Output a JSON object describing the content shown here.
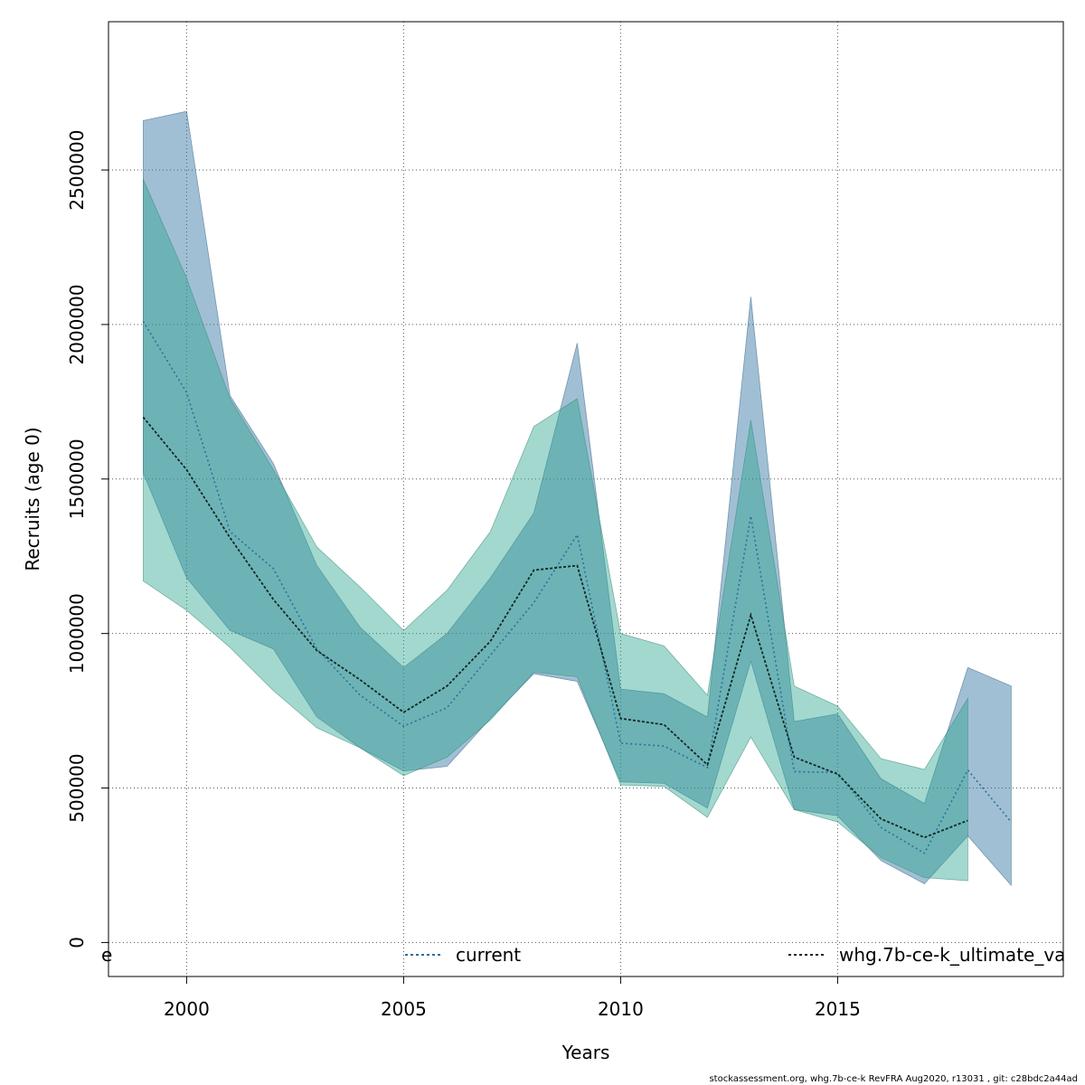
{
  "chart_data": {
    "type": "area",
    "title": "",
    "xlabel": "Years",
    "ylabel": "Recruits (age 0)",
    "xlim": [
      1998.2,
      2020.2
    ],
    "ylim": [
      -110000,
      2980000
    ],
    "x_ticks": [
      2000,
      2005,
      2010,
      2015
    ],
    "y_ticks": [
      0,
      500000,
      1000000,
      1500000,
      2000000,
      2500000
    ],
    "x_tick_labels": [
      "2000",
      "2005",
      "2010",
      "2015"
    ],
    "y_tick_labels": [
      "0",
      "500000",
      "1000000",
      "1500000",
      "2000000",
      "2500000"
    ],
    "grid": true,
    "legend_position": "bottom",
    "series": [
      {
        "name": "current",
        "color": "#2a7098",
        "band_color": "#2f72a0",
        "x": [
          1999,
          2000,
          2001,
          2002,
          2003,
          2004,
          2005,
          2006,
          2007,
          2008,
          2009,
          2010,
          2011,
          2012,
          2013,
          2014,
          2015,
          2016,
          2017,
          2018,
          2019
        ],
        "values": [
          2010000,
          1780000,
          1330000,
          1210000,
          950000,
          800000,
          700000,
          760000,
          930000,
          1100000,
          1320000,
          645000,
          636000,
          566000,
          1380000,
          553000,
          550000,
          372000,
          289000,
          558000,
          390000
        ],
        "upper": [
          2660000,
          2690000,
          1770000,
          1550000,
          1220000,
          1020000,
          890000,
          1000000,
          1180000,
          1390000,
          1940000,
          820000,
          805000,
          730000,
          2090000,
          715000,
          740000,
          530000,
          450000,
          890000,
          830000
        ],
        "lower": [
          1520000,
          1180000,
          1010000,
          950000,
          730000,
          630000,
          555000,
          570000,
          725000,
          870000,
          845000,
          520000,
          515000,
          435000,
          910000,
          430000,
          410000,
          265000,
          190000,
          345000,
          185000
        ]
      },
      {
        "name": "whg.7b-ce-k_ultimate_va",
        "color": "#102820",
        "band_color": "#2aa590",
        "x": [
          1999,
          2000,
          2001,
          2002,
          2003,
          2004,
          2005,
          2006,
          2007,
          2008,
          2009,
          2010,
          2011,
          2012,
          2013,
          2014,
          2015,
          2016,
          2017,
          2018
        ],
        "values": [
          1700000,
          1530000,
          1310000,
          1110000,
          945000,
          850000,
          745000,
          830000,
          975000,
          1205000,
          1220000,
          725000,
          705000,
          575000,
          1060000,
          600000,
          545000,
          400000,
          340000,
          395000
        ],
        "upper": [
          2470000,
          2150000,
          1760000,
          1530000,
          1280000,
          1150000,
          1010000,
          1140000,
          1330000,
          1670000,
          1760000,
          1000000,
          960000,
          800000,
          1690000,
          830000,
          765000,
          595000,
          560000,
          790000
        ],
        "lower": [
          1170000,
          1075000,
          955000,
          815000,
          695000,
          630000,
          540000,
          600000,
          720000,
          875000,
          860000,
          510000,
          505000,
          405000,
          665000,
          430000,
          390000,
          275000,
          210000,
          200000
        ]
      }
    ],
    "legend_entries": [
      "e",
      "current",
      "whg.7b-ce-k_ultimate_va"
    ]
  },
  "footer": {
    "text": "stockassessment.org, whg.7b-ce-k  RevFRA  Aug2020, r13031 , git: c28bdc2a44ad"
  }
}
